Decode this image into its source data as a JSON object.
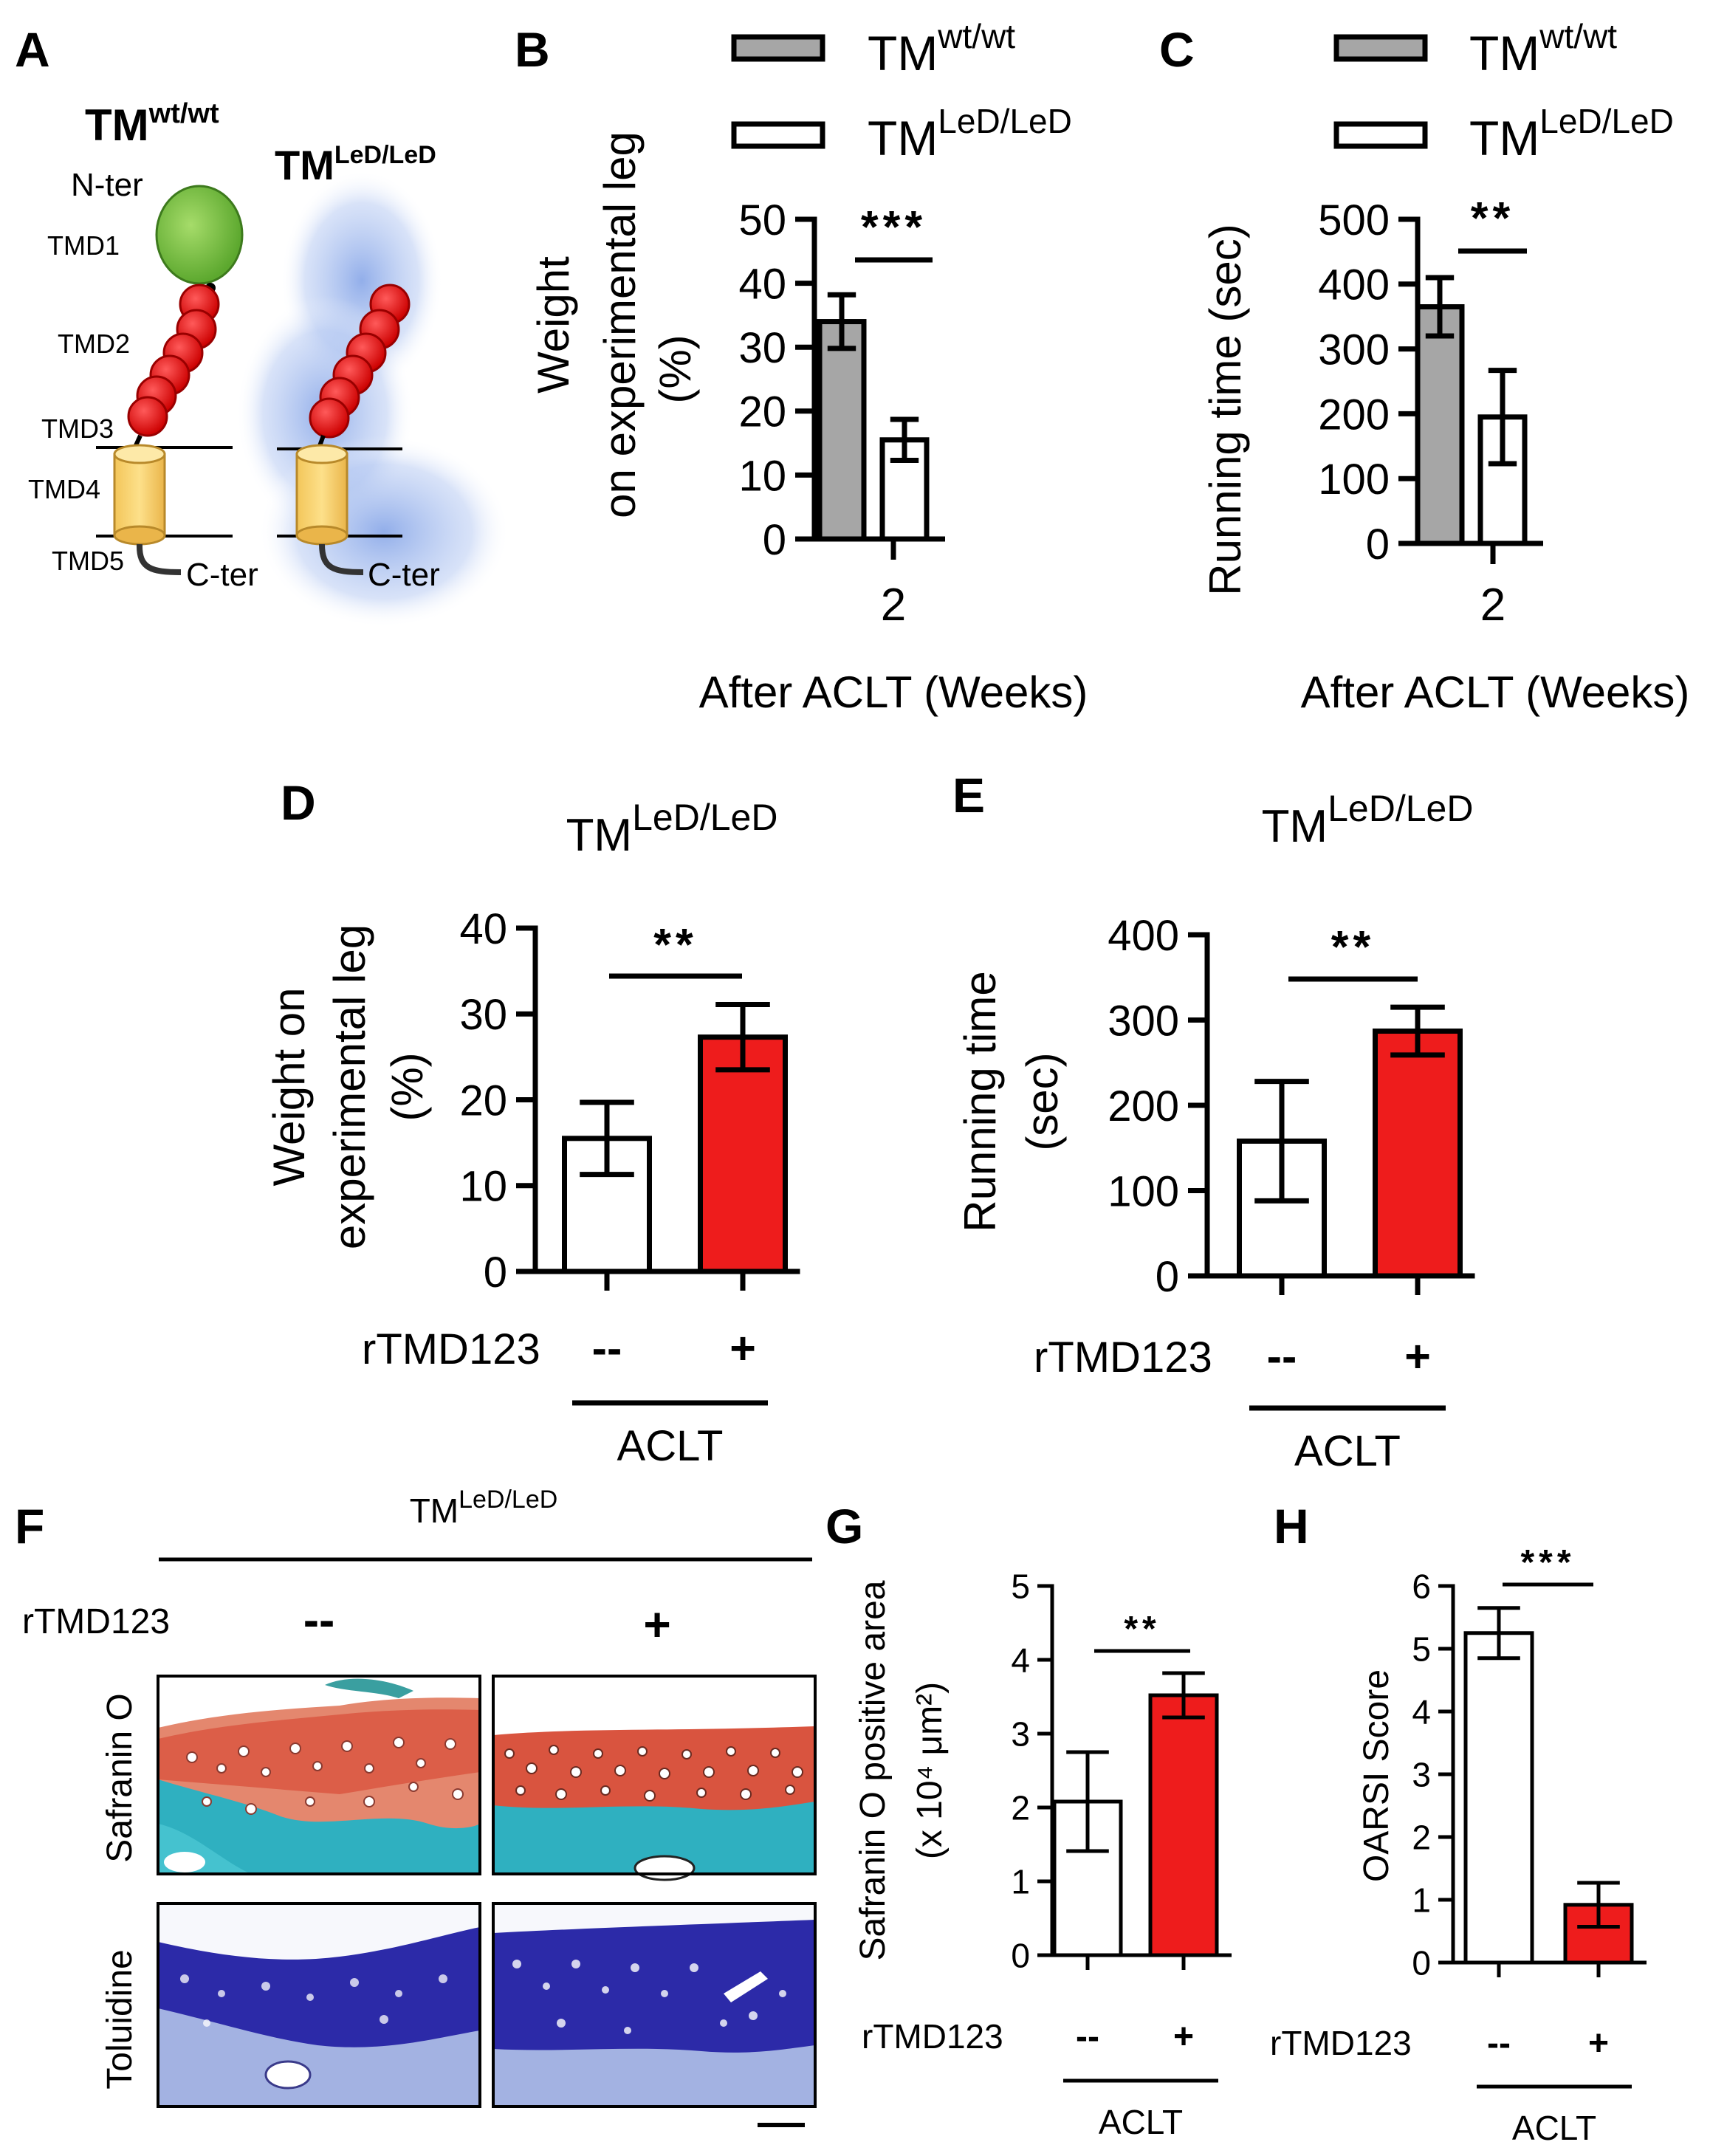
{
  "colors": {
    "wt": "#a6a6a6",
    "led": "#ffffff",
    "treated": "#ee1c1c",
    "axis": "#000000"
  },
  "panel_letters": [
    "A",
    "B",
    "C",
    "D",
    "E",
    "F",
    "G",
    "H"
  ],
  "panelA": {
    "wt": {
      "base": "TM",
      "sup": "wt/wt"
    },
    "led": {
      "base": "TM",
      "sup": "LeD/LeD"
    },
    "nter": "N-ter",
    "cter": "C-ter",
    "domains": [
      "TMD1",
      "TMD2",
      "TMD3",
      "TMD4",
      "TMD5"
    ]
  },
  "panelF": {
    "header": {
      "base": "TM",
      "sup": "LeD/LeD"
    },
    "treatment_label": "rTMD123",
    "conditions": [
      "--",
      "+"
    ],
    "stains": [
      "Safranin O",
      "Toluidine"
    ]
  },
  "chart_data": [
    {
      "id": "B",
      "type": "bar",
      "title": "",
      "legend": [
        {
          "base": "TM",
          "sup": "wt/wt"
        },
        {
          "base": "TM",
          "sup": "LeD/LeD"
        }
      ],
      "categories": [
        "2"
      ],
      "series": [
        {
          "name": "TMwt/wt",
          "values": [
            34
          ],
          "err": [
            4.2
          ]
        },
        {
          "name": "TMLeD/LeD",
          "values": [
            15.5
          ],
          "err": [
            3.2
          ]
        }
      ],
      "ylabel": [
        "Weight",
        "on experimental leg",
        "(%)"
      ],
      "xlabel": "After ACLT (Weeks)",
      "ylim": [
        0,
        50
      ],
      "yticks": [
        0,
        10,
        20,
        30,
        40,
        50
      ],
      "significance": "***"
    },
    {
      "id": "C",
      "type": "bar",
      "legend": [
        {
          "base": "TM",
          "sup": "wt/wt"
        },
        {
          "base": "TM",
          "sup": "LeD/LeD"
        }
      ],
      "categories": [
        "2"
      ],
      "series": [
        {
          "name": "TMwt/wt",
          "values": [
            365
          ],
          "err": [
            45
          ]
        },
        {
          "name": "TMLeD/LeD",
          "values": [
            195
          ],
          "err": [
            72
          ]
        }
      ],
      "ylabel": [
        "Running time (sec)"
      ],
      "xlabel": "After ACLT (Weeks)",
      "ylim": [
        0,
        500
      ],
      "yticks": [
        0,
        100,
        200,
        300,
        400,
        500
      ],
      "significance": "**"
    },
    {
      "id": "D",
      "type": "bar",
      "title": {
        "base": "TM",
        "sup": "LeD/LeD"
      },
      "categories": [
        "--",
        "+"
      ],
      "values": [
        15.5,
        27.3
      ],
      "err": [
        4.2,
        3.8
      ],
      "ylabel": [
        "Weight on",
        "experimental leg",
        "(%)"
      ],
      "treatment_label": "rTMD123",
      "group_label": "ACLT",
      "ylim": [
        0,
        40
      ],
      "yticks": [
        0,
        10,
        20,
        30,
        40
      ],
      "significance": "**"
    },
    {
      "id": "E",
      "type": "bar",
      "title": {
        "base": "TM",
        "sup": "LeD/LeD"
      },
      "categories": [
        "--",
        "+"
      ],
      "values": [
        158,
        287
      ],
      "err": [
        70,
        28
      ],
      "ylabel": [
        "Running time",
        "(sec)"
      ],
      "treatment_label": "rTMD123",
      "group_label": "ACLT",
      "ylim": [
        0,
        400
      ],
      "yticks": [
        0,
        100,
        200,
        300,
        400
      ],
      "significance": "**"
    },
    {
      "id": "G",
      "type": "bar",
      "categories": [
        "--",
        "+"
      ],
      "values": [
        2.08,
        3.52
      ],
      "err": [
        0.67,
        0.3
      ],
      "ylabel": [
        "Safranin O positive area",
        "(x 10⁴ μm²)"
      ],
      "treatment_label": "rTMD123",
      "group_label": "ACLT",
      "ylim": [
        0,
        5
      ],
      "yticks": [
        0,
        1,
        2,
        3,
        4,
        5
      ],
      "significance": "**"
    },
    {
      "id": "H",
      "type": "bar",
      "categories": [
        "--",
        "+"
      ],
      "values": [
        5.25,
        0.92
      ],
      "err": [
        0.4,
        0.35
      ],
      "ylabel": [
        "OARSI Score"
      ],
      "treatment_label": "rTMD123",
      "group_label": "ACLT",
      "ylim": [
        0,
        6
      ],
      "yticks": [
        0,
        1,
        2,
        3,
        4,
        5,
        6
      ],
      "significance": "***"
    }
  ]
}
